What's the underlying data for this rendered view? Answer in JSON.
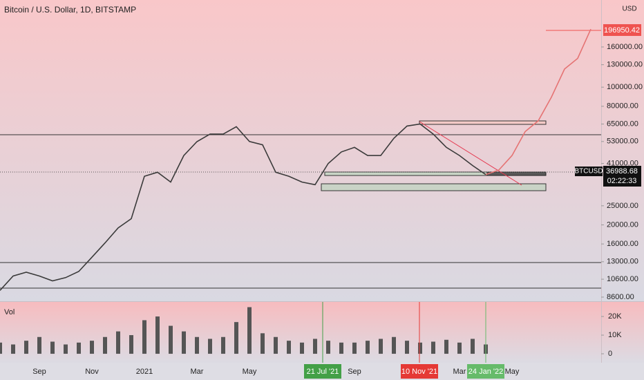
{
  "chart_data": {
    "type": "line",
    "title": "Bitcoin / U.S. Dollar, 1D, BITSTAMP",
    "currency": "USD",
    "log_scale": true,
    "categories": [
      null,
      null,
      null,
      "Sep",
      null,
      null,
      null,
      "Nov",
      null,
      null,
      null,
      "2021",
      null,
      null,
      null,
      "Mar",
      null,
      null,
      null,
      "May",
      null,
      null,
      null,
      null,
      null,
      null,
      null,
      "Sep",
      null,
      null,
      null,
      null,
      null,
      null,
      null,
      "Mar",
      null,
      null,
      null,
      "May",
      null,
      null,
      null,
      null,
      null,
      null
    ],
    "series": [
      {
        "color": "#3a3a3a",
        "values": [
          9300,
          11000,
          11500,
          11000,
          10400,
          10800,
          11600,
          13700,
          16200,
          19300,
          21500,
          35300,
          37000,
          33000,
          45000,
          52900,
          57800,
          57800,
          63000,
          53000,
          51000,
          37000,
          35300,
          33000,
          32000,
          41000,
          46900,
          49500,
          45000,
          45000,
          55000,
          63500,
          65000,
          57800,
          49500,
          45000,
          40000,
          36000,
          null,
          null,
          null,
          null,
          null,
          null,
          null,
          null
        ]
      },
      {
        "color": "#e57373",
        "values": [
          null,
          null,
          null,
          null,
          null,
          null,
          null,
          null,
          null,
          null,
          null,
          null,
          null,
          null,
          null,
          null,
          null,
          null,
          null,
          null,
          null,
          null,
          null,
          null,
          null,
          null,
          null,
          null,
          null,
          null,
          null,
          null,
          null,
          null,
          null,
          null,
          null,
          36000,
          38000,
          45000,
          59500,
          67500,
          89000,
          123600,
          140000,
          196950.42
        ]
      }
    ],
    "ylim": [
      8260,
      277000
    ],
    "yticks": [
      {
        "value": 160000,
        "label": "160000.00"
      },
      {
        "value": 130000,
        "label": "130000.00"
      },
      {
        "value": 100000,
        "label": "100000.00"
      },
      {
        "value": 80000,
        "label": "80000.00"
      },
      {
        "value": 65000,
        "label": "65000.00"
      },
      {
        "value": 53000,
        "label": "53000.00"
      },
      {
        "value": 41000,
        "label": "41000.00"
      },
      {
        "value": 25000,
        "label": "25000.00"
      },
      {
        "value": 20000,
        "label": "20000.00"
      },
      {
        "value": 16000,
        "label": "16000.00"
      },
      {
        "value": 13000,
        "label": "13000.00"
      },
      {
        "value": 10600,
        "label": "10600.00"
      },
      {
        "value": 8600,
        "label": "8600.00"
      }
    ],
    "last_price": {
      "value": 36988.68,
      "label": "36988.68"
    },
    "symbol": "BTCUSD",
    "countdown": "02:22:33",
    "target_price": {
      "value": 196950.42,
      "label": "196950.42"
    },
    "volume": {
      "title": "Vol",
      "color": "#555555",
      "values": [
        6000,
        5000,
        7000,
        9000,
        6500,
        5000,
        6000,
        7000,
        9000,
        12000,
        10000,
        18000,
        20000,
        15000,
        12000,
        9000,
        8000,
        9000,
        17000,
        25000,
        11000,
        9000,
        7000,
        6000,
        8000,
        7000,
        6000,
        6000,
        7000,
        8000,
        9000,
        7000,
        6000,
        6500,
        7500,
        6000,
        8000,
        5000,
        null,
        null,
        null,
        null,
        null,
        null,
        null,
        null
      ],
      "ylim": [
        -4800,
        27800
      ],
      "yticks": [
        {
          "value": 20000,
          "label": "20K"
        },
        {
          "value": 10000,
          "label": "10K"
        },
        0
      ]
    },
    "date_markers": [
      {
        "label": "21 Jul '21",
        "color": "#43a047"
      },
      {
        "label": "10 Nov '21",
        "color": "#e53935"
      },
      {
        "label": "24 Jan '22",
        "color": "#66bb6a"
      }
    ]
  }
}
